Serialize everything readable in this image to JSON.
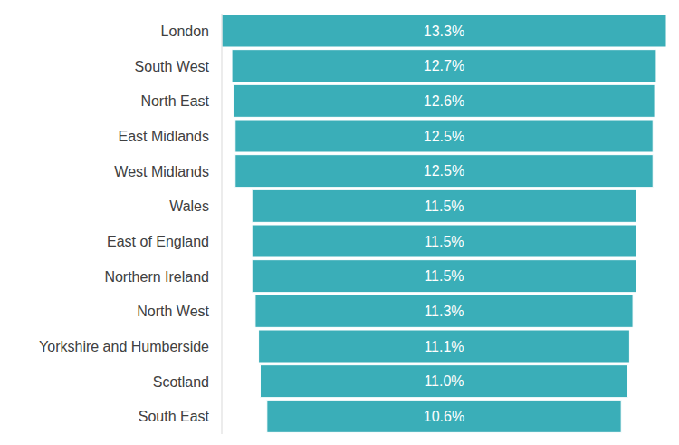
{
  "chart_data": {
    "type": "bar",
    "orientation": "horizontal",
    "categories": [
      "London",
      "South West",
      "North East",
      "East Midlands",
      "West Midlands",
      "Wales",
      "East of England",
      "Northern Ireland",
      "North West",
      "Yorkshire and Humberside",
      "Scotland",
      "South East"
    ],
    "values": [
      13.3,
      12.7,
      12.6,
      12.5,
      12.5,
      11.5,
      11.5,
      11.5,
      11.3,
      11.1,
      11.0,
      10.6
    ],
    "value_labels": [
      "13.3%",
      "12.7%",
      "12.6%",
      "12.5%",
      "12.5%",
      "11.5%",
      "11.5%",
      "11.5%",
      "11.3%",
      "11.1%",
      "11.0%",
      "10.6%"
    ],
    "color": "#3aaeb8",
    "xlim": [
      0,
      13.3
    ],
    "data_labels": true,
    "tick_labels": "y"
  }
}
